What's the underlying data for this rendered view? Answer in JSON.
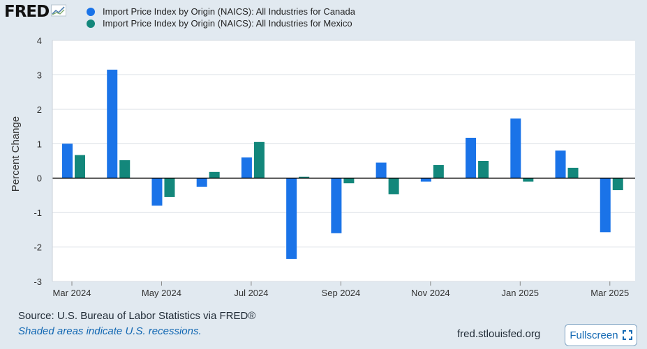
{
  "header": {
    "logo_text": "FRED",
    "logo_icon": "fred-trend-icon"
  },
  "chart_data": {
    "type": "bar",
    "title": "",
    "xlabel": "",
    "ylabel": "Percent Change",
    "ylim": [
      -3,
      4
    ],
    "yticks": [
      4,
      3,
      2,
      1,
      0,
      -1,
      -2,
      -3
    ],
    "grid": true,
    "legend_position": "top-left",
    "categories": [
      "Mar 2024",
      "Apr 2024",
      "May 2024",
      "Jun 2024",
      "Jul 2024",
      "Aug 2024",
      "Sep 2024",
      "Oct 2024",
      "Nov 2024",
      "Dec 2024",
      "Jan 2025",
      "Feb 2025",
      "Mar 2025"
    ],
    "x_tick_labels": [
      "Mar 2024",
      "May 2024",
      "Jul 2024",
      "Sep 2024",
      "Nov 2024",
      "Jan 2025",
      "Mar 2025"
    ],
    "series": [
      {
        "name": "Import Price Index by Origin (NAICS): All Industries for Canada",
        "color": "#1a73e8",
        "values": [
          1.0,
          3.15,
          -0.8,
          -0.25,
          0.6,
          -2.35,
          -1.6,
          0.45,
          -0.1,
          1.17,
          1.73,
          0.8,
          -1.57
        ]
      },
      {
        "name": "Import Price Index by Origin (NAICS): All Industries for Mexico",
        "color": "#13877b",
        "values": [
          0.67,
          0.52,
          -0.55,
          0.18,
          1.05,
          0.04,
          -0.15,
          -0.47,
          0.38,
          0.5,
          -0.1,
          0.3,
          -0.35
        ]
      }
    ]
  },
  "footer": {
    "source": "Source: U.S. Bureau of Labor Statistics via FRED®",
    "note": "Shaded areas indicate U.S. recessions.",
    "url": "fred.stlouisfed.org",
    "fullscreen_label": "Fullscreen",
    "fullscreen_icon": "expand-icon"
  }
}
